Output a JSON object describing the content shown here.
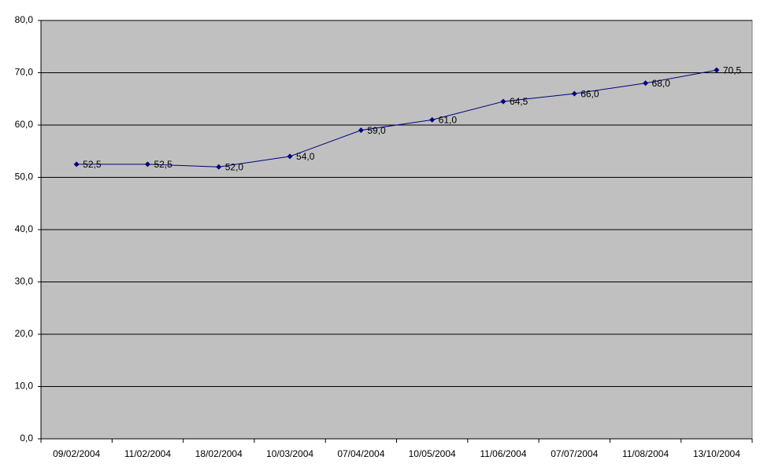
{
  "chart_data": {
    "type": "line",
    "categories": [
      "09/02/2004",
      "11/02/2004",
      "18/02/2004",
      "10/03/2004",
      "07/04/2004",
      "10/05/2004",
      "11/06/2004",
      "07/07/2004",
      "11/08/2004",
      "13/10/2004"
    ],
    "values": [
      52.5,
      52.5,
      52.0,
      54.0,
      59.0,
      61.0,
      64.5,
      66.0,
      68.0,
      70.5
    ],
    "value_labels": [
      "52,5",
      "52,5",
      "52,0",
      "54,0",
      "59,0",
      "61,0",
      "64,5",
      "66,0",
      "68,0",
      "70,5"
    ],
    "color": "#000080",
    "ylim": [
      0,
      80
    ],
    "yticks": [
      {
        "value": 0,
        "label": "0,0"
      },
      {
        "value": 10,
        "label": "10,0"
      },
      {
        "value": 20,
        "label": "20,0"
      },
      {
        "value": 30,
        "label": "30,0"
      },
      {
        "value": 40,
        "label": "40,0"
      },
      {
        "value": 50,
        "label": "50,0"
      },
      {
        "value": 60,
        "label": "60,0"
      },
      {
        "value": 70,
        "label": "70,0"
      },
      {
        "value": 80,
        "label": "80,0"
      }
    ],
    "grid": true
  }
}
